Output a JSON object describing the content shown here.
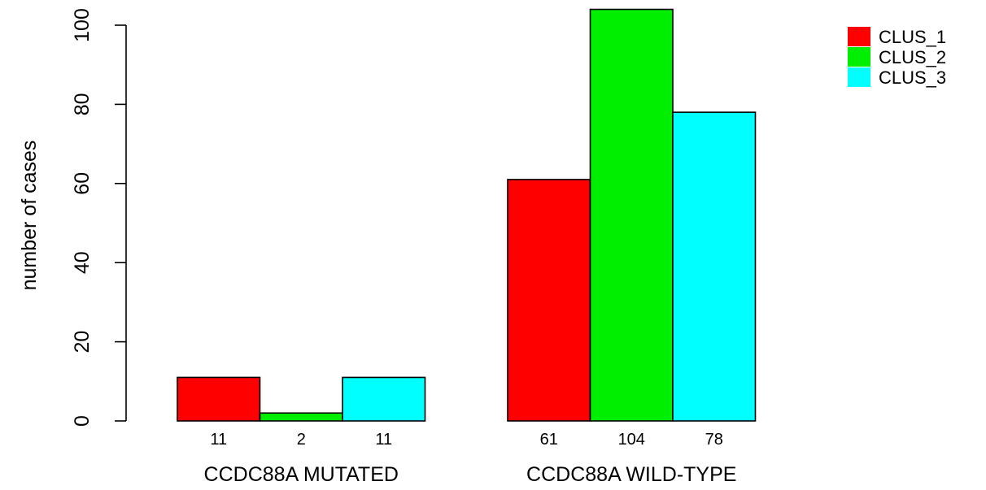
{
  "chart_data": {
    "type": "bar",
    "title": "",
    "xlabel": "",
    "ylabel": "number of cases",
    "ylim": [
      0,
      104
    ],
    "yticks": [
      0,
      20,
      40,
      60,
      80,
      100
    ],
    "categories": [
      "CCDC88A MUTATED",
      "CCDC88A WILD-TYPE"
    ],
    "series": [
      {
        "name": "CLUS_1",
        "color": "#ff0000",
        "values": [
          11,
          61
        ]
      },
      {
        "name": "CLUS_2",
        "color": "#00ee00",
        "values": [
          2,
          104
        ]
      },
      {
        "name": "CLUS_3",
        "color": "#00ffff",
        "values": [
          11,
          78
        ]
      }
    ],
    "value_labels": [
      [
        "11",
        "2",
        "11"
      ],
      [
        "61",
        "104",
        "78"
      ]
    ],
    "legend_position": "top-right",
    "grid": false
  }
}
